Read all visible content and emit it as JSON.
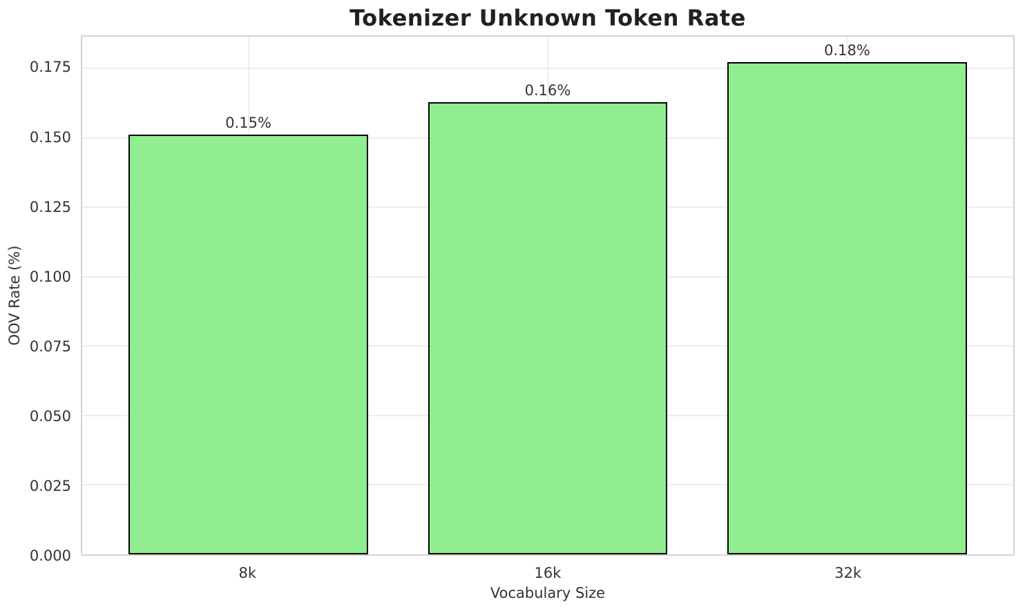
{
  "chart_data": {
    "type": "bar",
    "title": "Tokenizer Unknown Token Rate",
    "xlabel": "Vocabulary Size",
    "ylabel": "OOV Rate (%)",
    "categories": [
      "8k",
      "16k",
      "32k"
    ],
    "values": [
      0.1512,
      0.1628,
      0.1772
    ],
    "bar_labels": [
      "0.15%",
      "0.16%",
      "0.18%"
    ],
    "yticks": [
      0,
      0.025,
      0.05,
      0.075,
      0.1,
      0.125,
      0.15,
      0.175
    ],
    "ytick_labels": [
      "0.000",
      "0.025",
      "0.050",
      "0.075",
      "0.100",
      "0.125",
      "0.150",
      "0.175"
    ],
    "ylim": [
      0,
      0.1865
    ],
    "xlim": [
      -0.555,
      2.555
    ],
    "bar_width": 0.8,
    "grid": "both",
    "legend": "none",
    "colors": {
      "bar": "#90ee90",
      "bar_edge": "#000000",
      "grid": "#ededed",
      "spine": "#d3d3d3",
      "text": "#333333",
      "title": "#212121"
    }
  }
}
